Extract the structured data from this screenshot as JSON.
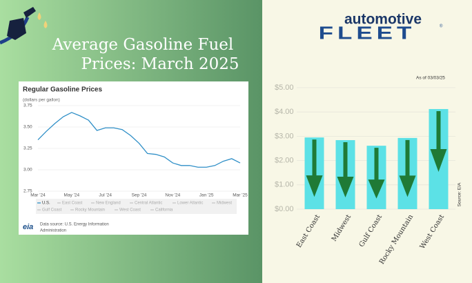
{
  "title_lines": [
    "Average Gasoline Fuel",
    "Prices: March 2025"
  ],
  "chart_data": [
    {
      "type": "line",
      "title": "Regular Gasoline Prices",
      "subtitle": "(dollars per gallon)",
      "categories": [
        "Mar '24",
        null,
        null,
        null,
        "May '24",
        null,
        null,
        null,
        "Jul '24",
        null,
        null,
        null,
        "Sep '24",
        null,
        null,
        null,
        "Nov '24",
        null,
        null,
        null,
        "Jan '25",
        null,
        null,
        null,
        "Mar '25"
      ],
      "series": [
        {
          "name": "U.S.",
          "color": "#2f8fc7",
          "values": [
            3.35,
            3.45,
            3.54,
            3.62,
            3.67,
            3.63,
            3.58,
            3.46,
            3.49,
            3.49,
            3.47,
            3.4,
            3.31,
            3.19,
            3.18,
            3.15,
            3.08,
            3.05,
            3.05,
            3.03,
            3.03,
            3.05,
            3.1,
            3.13,
            3.08
          ]
        }
      ],
      "other_legend": [
        "East Coast",
        "New England",
        "Central Atlantic",
        "Lower Atlantic",
        "Midwest",
        "Gulf Coast",
        "Rocky Mountain",
        "West Coast",
        "California"
      ],
      "ylim": [
        2.75,
        3.75
      ],
      "yticks": [
        2.75,
        {
          "value": 3,
          "label": "3.00"
        },
        3.25,
        {
          "value": 3.5,
          "label": "3.50"
        },
        3.75
      ],
      "grid": true,
      "source_lines": [
        "Data source: U.S. Energy Information",
        "Administration"
      ],
      "logo": "eia"
    },
    {
      "type": "bar",
      "brand": "automotive",
      "brand_big": "FLEET",
      "brand_mark": "®",
      "annotation": "As of 03/03/25",
      "source": "Source: EIA",
      "categories": [
        "East Coast",
        "Midwest",
        "Gulf Coast",
        "Rocky Mountain",
        "West Coast"
      ],
      "values": [
        2.95,
        2.84,
        2.61,
        2.93,
        4.12
      ],
      "color": "#5ce1e6",
      "arrow_color": "#1f7a36",
      "ylim": [
        0,
        5
      ],
      "yticks": [
        {
          "value": 0,
          "label": "$0.00"
        },
        {
          "value": 1,
          "label": "$1.00"
        },
        {
          "value": 2,
          "label": "$2.00"
        },
        {
          "value": 3,
          "label": "$3.00"
        },
        {
          "value": 4,
          "label": "$4.00"
        },
        {
          "value": 5,
          "label": "$5.00"
        }
      ],
      "grid": true
    }
  ]
}
